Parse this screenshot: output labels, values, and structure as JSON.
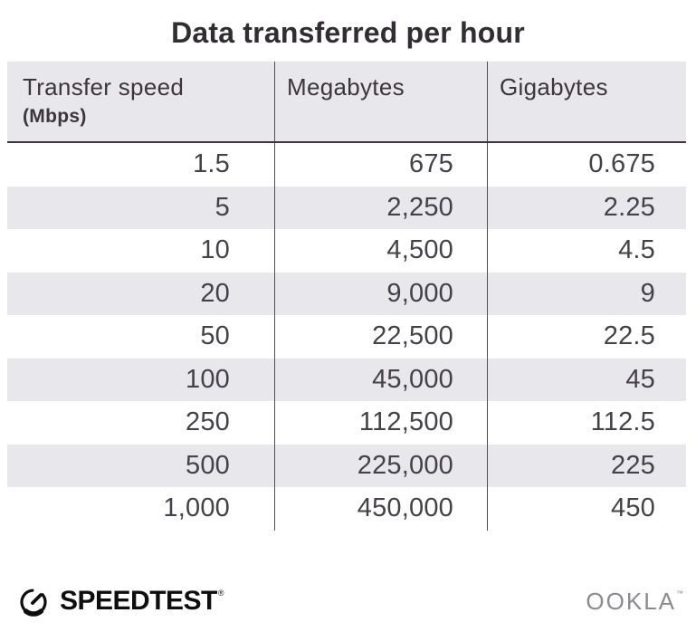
{
  "title": "Data transferred per hour",
  "table": {
    "columns": [
      {
        "label": "Transfer speed",
        "sublabel": "(Mbps)"
      },
      {
        "label": "Megabytes",
        "sublabel": ""
      },
      {
        "label": "Gigabytes",
        "sublabel": ""
      }
    ],
    "rows": [
      [
        "1.5",
        "675",
        "0.675"
      ],
      [
        "5",
        "2,250",
        "2.25"
      ],
      [
        "10",
        "4,500",
        "4.5"
      ],
      [
        "20",
        "9,000",
        "9"
      ],
      [
        "50",
        "22,500",
        "22.5"
      ],
      [
        "100",
        "45,000",
        "45"
      ],
      [
        "250",
        "112,500",
        "112.5"
      ],
      [
        "500",
        "225,000",
        "225"
      ],
      [
        "1,000",
        "450,000",
        "450"
      ]
    ]
  },
  "footer": {
    "speedtest_label": "SPEEDTEST",
    "speedtest_mark": "®",
    "ookla_label": "OOKLA",
    "ookla_mark": "™"
  },
  "colors": {
    "stripe": "#e8e7ec",
    "divider": "#514e54",
    "header_border": "#3a363b",
    "title_text": "#312d32",
    "header_text": "#3a363b",
    "number_text": "#454148",
    "ookla_gray": "#8b8a8e",
    "logo_black": "#0e0e0e"
  },
  "chart_data": {
    "type": "table",
    "title": "Data transferred per hour",
    "columns": [
      "Transfer speed (Mbps)",
      "Megabytes",
      "Gigabytes"
    ],
    "rows": [
      [
        1.5,
        675,
        0.675
      ],
      [
        5,
        2250,
        2.25
      ],
      [
        10,
        4500,
        4.5
      ],
      [
        20,
        9000,
        9
      ],
      [
        50,
        22500,
        22.5
      ],
      [
        100,
        45000,
        45
      ],
      [
        250,
        112500,
        112.5
      ],
      [
        500,
        225000,
        225
      ],
      [
        1000,
        450000,
        450
      ]
    ]
  }
}
